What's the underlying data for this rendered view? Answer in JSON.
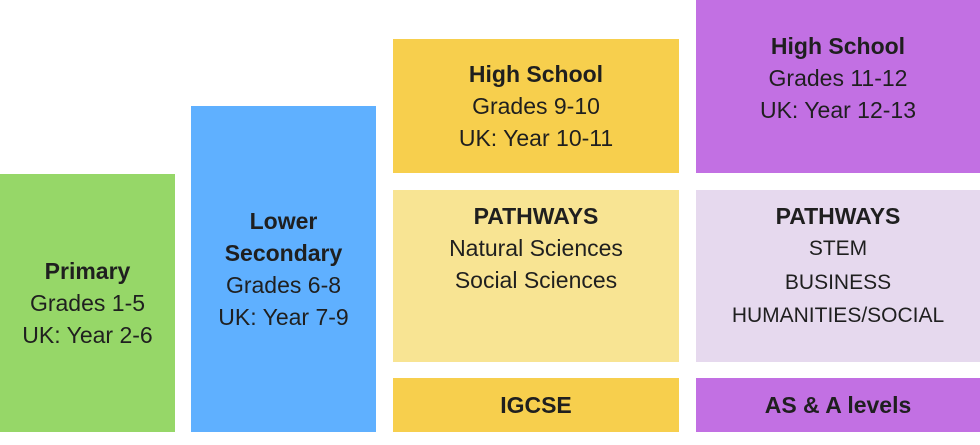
{
  "primary": {
    "title": "Primary",
    "grades": "Grades 1-5",
    "uk": "UK: Year 2-6"
  },
  "lower_secondary": {
    "title_line1": "Lower",
    "title_line2": "Secondary",
    "grades": "Grades 6-8",
    "uk": "UK: Year 7-9"
  },
  "high_school_9_10": {
    "title": "High School",
    "grades": "Grades 9-10",
    "uk": "UK: Year 10-11"
  },
  "high_school_11_12": {
    "title": "High School",
    "grades": "Grades 11-12",
    "uk": "UK: Year 12-13"
  },
  "pathways_left": {
    "title": "PATHWAYS",
    "items": [
      "Natural Sciences",
      "Social Sciences"
    ]
  },
  "pathways_right": {
    "title": "PATHWAYS",
    "items": [
      "STEM",
      "BUSINESS",
      "HUMANITIES/SOCIAL"
    ]
  },
  "igcse": {
    "label": "IGCSE"
  },
  "a_levels": {
    "label": "AS & A levels"
  },
  "colors": {
    "primary": "#96d768",
    "lower_secondary": "#5fb0ff",
    "high_school_9_10": "#f7cf4d",
    "high_school_11_12": "#c270e3",
    "pathways_left": "#f8e493",
    "pathways_right": "#e6d9ee"
  }
}
